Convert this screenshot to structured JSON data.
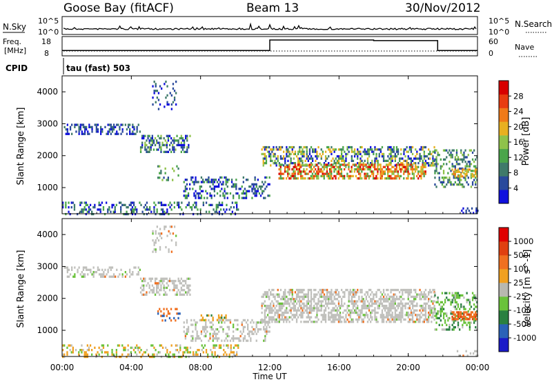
{
  "header": {
    "station": "Goose Bay (fitACF)",
    "beam": "Beam 13",
    "date": "30/Nov/2012"
  },
  "panels": {
    "noise_label_left": "N.Sky",
    "noise_label_right": "N.Search",
    "noise_ticks_left": [
      "10^5",
      "10^0"
    ],
    "noise_ticks_right": [
      "10^5",
      "10^0"
    ],
    "freq_label": "Freq.",
    "freq_unit": "[MHz]",
    "freq_ticks": [
      "18",
      "8"
    ],
    "nave_label": "Nave",
    "nave_ticks": [
      "60",
      "0"
    ],
    "cpid_label": "CPID",
    "cpid_text": "tau (fast) 503"
  },
  "colors": {
    "power": [
      "#1010dd",
      "#2a4a9c",
      "#3f7a6a",
      "#4aa54a",
      "#8fc24a",
      "#e8b020",
      "#f07a18",
      "#e83c10",
      "#d80000"
    ],
    "velocity": [
      "#1a1ac8",
      "#2a62b8",
      "#2a8040",
      "#6ac23a",
      "#b8b8b0",
      "#f0a020",
      "#f07020",
      "#e04010",
      "#e00000"
    ],
    "gray": "#c0c0bc"
  },
  "chart_data": [
    {
      "type": "heatmap",
      "title": "Power",
      "ylabel": "Slant Range [km]",
      "colorbar_label": "Power [dB]",
      "colorbar_ticks": [
        "28",
        "24",
        "20",
        "16",
        "12",
        "8",
        "4"
      ],
      "ylim": [
        180,
        4500
      ],
      "y_ticks": [
        "4000",
        "3000",
        "2000",
        "1000"
      ],
      "x_range_hours": [
        0,
        24
      ],
      "echo_regions": [
        {
          "t_start": 0.1,
          "t_end": 7.5,
          "range_start": 2600,
          "range_end": 3000,
          "level": "weak-moderate"
        },
        {
          "t_start": 4.5,
          "t_end": 7.5,
          "range_start": 2100,
          "range_end": 2600,
          "level": "moderate"
        },
        {
          "t_start": 5.0,
          "t_end": 6.5,
          "range_start": 3400,
          "range_end": 4400,
          "level": "weak"
        },
        {
          "t_start": 7.0,
          "t_end": 12.0,
          "range_start": 700,
          "range_end": 1400,
          "level": "weak-moderate"
        },
        {
          "t_start": 0.0,
          "t_end": 10.0,
          "range_start": 200,
          "range_end": 600,
          "level": "weak"
        },
        {
          "t_start": 11.5,
          "t_end": 21.5,
          "range_start": 1300,
          "range_end": 2300,
          "level": "strong"
        },
        {
          "t_start": 21.5,
          "t_end": 24.0,
          "range_start": 1000,
          "range_end": 2200,
          "level": "moderate"
        }
      ]
    },
    {
      "type": "heatmap",
      "title": "Velocity",
      "ylabel": "Slant Range [km]",
      "xlabel": "Time UT",
      "colorbar_label": "Velocity [m s^-1]",
      "colorbar_ticks": [
        "1000",
        "500",
        "100",
        "25",
        "-25",
        "-100",
        "-500",
        "-1000"
      ],
      "ylim": [
        180,
        4500
      ],
      "y_ticks": [
        "4000",
        "3000",
        "2000",
        "1000"
      ],
      "x_ticks": [
        "00:00",
        "04:00",
        "08:00",
        "12:00",
        "16:00",
        "20:00",
        "00:00"
      ],
      "x_range_hours": [
        0,
        24
      ],
      "note": "mostly near-zero velocity (gray) ground scatter; orange/green patches near 1300-1600 km"
    },
    {
      "type": "line",
      "title": "Frequency",
      "unit": "MHz",
      "ylim": [
        8,
        18
      ],
      "x_hours": [
        0,
        12,
        12,
        18,
        18,
        21.7,
        21.7,
        24
      ],
      "freq_values": [
        10.8,
        10.8,
        16.2,
        16.2,
        15.9,
        15.9,
        10.8,
        10.8
      ]
    }
  ]
}
